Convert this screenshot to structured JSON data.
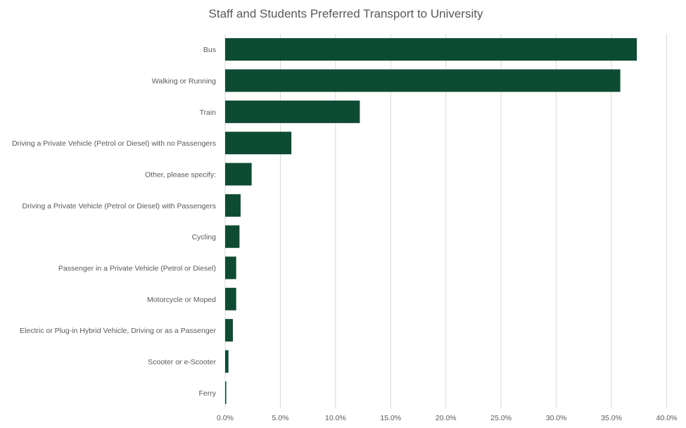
{
  "chart_data": {
    "type": "bar",
    "orientation": "horizontal",
    "title": "Staff and Students Preferred Transport to University",
    "xlabel": "",
    "ylabel": "",
    "xlim": [
      0,
      40
    ],
    "x_ticks": [
      "0.0%",
      "5.0%",
      "10.0%",
      "15.0%",
      "20.0%",
      "25.0%",
      "30.0%",
      "35.0%",
      "40.0%"
    ],
    "grid": "vertical",
    "legend": "none",
    "bar_color": "#0e4b33",
    "categories": [
      "Bus",
      "Walking or Running",
      "Train",
      "Driving a Private Vehicle (Petrol or Diesel) with no Passengers",
      "Other, please specify:",
      "Driving a Private Vehicle (Petrol or Diesel) with Passengers",
      "Cycling",
      "Passenger in a Private Vehicle (Petrol or Diesel)",
      "Motorcycle or Moped",
      "Electric or Plug-in Hybrid Vehicle, Driving or as a Passenger",
      "Scooter or e-Scooter",
      "Ferry"
    ],
    "values": [
      37.3,
      35.8,
      12.2,
      6.0,
      2.4,
      1.4,
      1.3,
      1.0,
      1.0,
      0.7,
      0.3,
      0.1
    ]
  }
}
